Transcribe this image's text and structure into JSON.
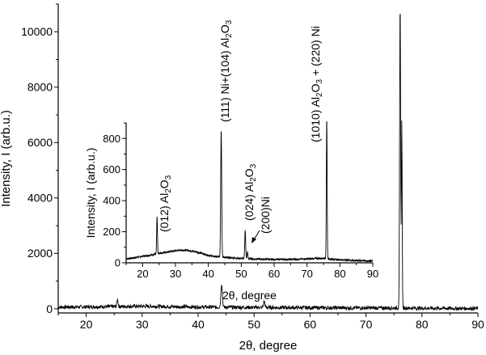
{
  "chart_data": [
    {
      "id": "main",
      "type": "line",
      "xlabel": "2θ, degree",
      "ylabel": "Intensity, I (arb.u.)",
      "xlim": [
        15,
        90
      ],
      "ylim": [
        -150,
        11000
      ],
      "xticks": [
        20,
        30,
        40,
        50,
        60,
        70,
        80,
        90
      ],
      "yticks": [
        0,
        2000,
        4000,
        6000,
        8000,
        10000
      ],
      "baseline": [
        [
          15,
          60
        ],
        [
          20,
          70
        ],
        [
          25,
          80
        ],
        [
          28,
          90
        ],
        [
          32,
          90
        ],
        [
          36,
          75
        ],
        [
          40,
          65
        ],
        [
          45,
          55
        ],
        [
          50,
          50
        ],
        [
          55,
          45
        ],
        [
          60,
          40
        ],
        [
          65,
          35
        ],
        [
          70,
          30
        ],
        [
          76,
          30
        ],
        [
          80,
          20
        ],
        [
          85,
          15
        ],
        [
          90,
          12
        ]
      ],
      "peaks": [
        {
          "x": 25.6,
          "y": 260,
          "w": 0.1
        },
        {
          "x": 44.2,
          "y": 850,
          "w": 0.13
        },
        {
          "x": 51.8,
          "y": 230,
          "w": 0.12
        },
        {
          "x": 76.1,
          "y": 11000,
          "w": 0.09
        },
        {
          "x": 76.4,
          "y": 6700,
          "w": 0.07
        }
      ]
    },
    {
      "id": "inset",
      "type": "line",
      "xlabel": "2θ, degree",
      "ylabel": "Intensity, I (arb.u.)",
      "xlim": [
        15,
        90
      ],
      "ylim": [
        0,
        900
      ],
      "xticks": [
        20,
        30,
        40,
        50,
        60,
        70,
        80,
        90
      ],
      "yticks": [
        0,
        200,
        400,
        600,
        800
      ],
      "baseline": [
        [
          15,
          25
        ],
        [
          18,
          35
        ],
        [
          21,
          45
        ],
        [
          24,
          55
        ],
        [
          27,
          68
        ],
        [
          30,
          78
        ],
        [
          32,
          82
        ],
        [
          34,
          80
        ],
        [
          36,
          72
        ],
        [
          38,
          60
        ],
        [
          40,
          48
        ],
        [
          42,
          40
        ],
        [
          45,
          35
        ],
        [
          50,
          28
        ],
        [
          55,
          24
        ],
        [
          60,
          22
        ],
        [
          65,
          22
        ],
        [
          70,
          25
        ],
        [
          73,
          28
        ],
        [
          75,
          30
        ],
        [
          77,
          24
        ],
        [
          80,
          20
        ],
        [
          85,
          15
        ],
        [
          90,
          12
        ]
      ],
      "peaks": [
        {
          "x": 24.4,
          "y": 240,
          "w": 0.12
        },
        {
          "x": 43.9,
          "y": 820,
          "w": 0.15
        },
        {
          "x": 51.2,
          "y": 180,
          "w": 0.14
        },
        {
          "x": 51.9,
          "y": 45,
          "w": 0.12
        },
        {
          "x": 76.0,
          "y": 900,
          "w": 0.12
        }
      ],
      "annotations": [
        {
          "id": "a012",
          "parts": [
            "(012) Al",
            "2",
            "O",
            "3"
          ],
          "x": 24.4
        },
        {
          "id": "a111",
          "parts": [
            "(111) Ni+(104) Al",
            "2",
            "O",
            "3"
          ],
          "x": 43.9
        },
        {
          "id": "a024",
          "parts": [
            "(024) Al",
            "2",
            "O",
            "3"
          ],
          "x": 51.2
        },
        {
          "id": "a200",
          "parts": [
            "(200)Ni"
          ],
          "x": 53.5
        },
        {
          "id": "a1010",
          "parts": [
            "(1010) Al",
            "2",
            "O",
            "3",
            " + (220) Ni"
          ],
          "x": 74.6
        }
      ]
    }
  ]
}
